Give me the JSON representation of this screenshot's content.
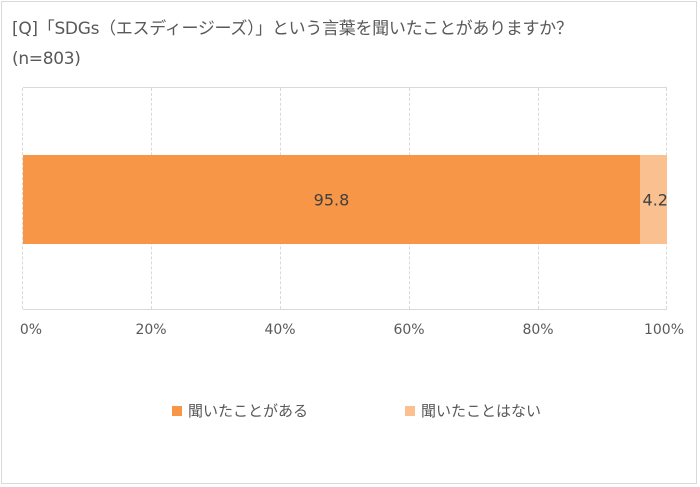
{
  "title": {
    "line1": "[Q]「SDGs（エスディージーズ）」という言葉を聞いたことがありますか？",
    "line2": "(n=803)"
  },
  "colors": {
    "heard": "#F79646",
    "not_heard": "#FAC090",
    "grid": "#D9D9D9",
    "text": "#595959"
  },
  "chart_data": {
    "type": "bar",
    "orientation": "horizontal",
    "stacked": true,
    "percent_stacked": true,
    "title": "[Q]「SDGs（エスディージーズ）」という言葉を聞いたことがありますか？ (n=803)",
    "categories": [
      ""
    ],
    "series": [
      {
        "name": "聞いたことがある",
        "values": [
          95.8
        ],
        "color": "#F79646"
      },
      {
        "name": "聞いたことはない",
        "values": [
          4.2
        ],
        "color": "#FAC090"
      }
    ],
    "xlabel": "",
    "ylabel": "",
    "xlim": [
      0,
      100
    ],
    "x_ticks": [
      "0%",
      "20%",
      "40%",
      "60%",
      "80%",
      "100%"
    ],
    "grid": true,
    "legend_position": "bottom",
    "data_labels": [
      "95.8",
      "4.2"
    ]
  },
  "bar": {
    "labels": [
      "95.8",
      "4.2"
    ]
  },
  "axis": {
    "ticks": [
      "0%",
      "20%",
      "40%",
      "60%",
      "80%",
      "100%"
    ]
  },
  "legend": {
    "items": [
      {
        "label": "聞いたことがある"
      },
      {
        "label": "聞いたことはない"
      }
    ]
  }
}
